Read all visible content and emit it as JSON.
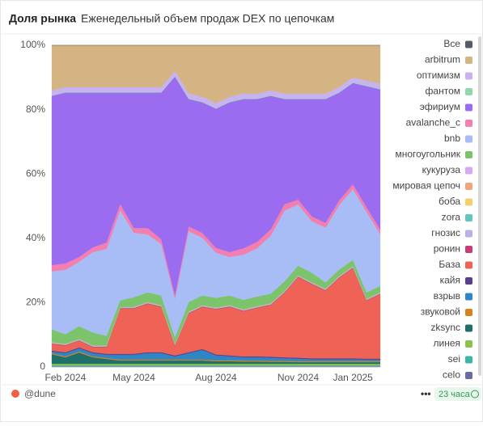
{
  "chart_data": {
    "type": "area",
    "stacked": true,
    "title": "Доля рынка",
    "subtitle": "Еженедельный объем продаж DEX по цепочкам",
    "footer_source": "@dune",
    "footer_time": "23 часа",
    "categories": [
      null,
      "Feb 2024",
      null,
      null,
      null,
      null,
      "May 2024",
      null,
      null,
      null,
      null,
      null,
      "Aug 2024",
      null,
      null,
      null,
      null,
      null,
      "Nov 2024",
      null,
      null,
      null,
      "Jan 2025",
      null,
      null
    ],
    "ylim": [
      0,
      100
    ],
    "yticks": [
      0,
      {
        "value": 20,
        "label": "20%"
      },
      {
        "value": 40,
        "label": "40%"
      },
      {
        "value": 60,
        "label": "60%"
      },
      {
        "value": 80,
        "label": "80%"
      },
      {
        "value": 100,
        "label": "100%"
      }
    ],
    "grid": true,
    "legend": "right",
    "series": [
      {
        "name": "Все",
        "color": "#555b66",
        "values": [
          0,
          0,
          0,
          0,
          0,
          0,
          0,
          0,
          0,
          0,
          0,
          0,
          0,
          0,
          0,
          0,
          0,
          0,
          0,
          0,
          0,
          0,
          0,
          0,
          0
        ]
      },
      {
        "name": "arbitrum",
        "color": "#d4b483",
        "values": [
          14,
          13,
          13,
          13,
          13,
          13,
          13,
          13,
          13,
          8,
          15,
          16,
          18,
          16,
          15,
          15,
          14,
          15,
          15,
          15,
          15,
          13,
          10,
          11,
          12
        ]
      },
      {
        "name": "оптимизм",
        "color": "#c9b2f2",
        "values": [
          1.5,
          1.5,
          1.5,
          1.5,
          1.5,
          1.5,
          1.5,
          1.5,
          1.5,
          1.5,
          1.5,
          1.5,
          1.5,
          1.5,
          1.5,
          1.5,
          1.5,
          1.5,
          1.5,
          1.5,
          1.5,
          1.5,
          1.5,
          1.5,
          1.5
        ]
      },
      {
        "name": "фантом",
        "color": "#8fd9a8",
        "values": [
          0.2,
          0.2,
          0.2,
          0.2,
          0.2,
          0.2,
          0.2,
          0.2,
          0.2,
          0.2,
          0.2,
          0.2,
          0.2,
          0.2,
          0.2,
          0.2,
          0.2,
          0.2,
          0.2,
          0.2,
          0.2,
          0.2,
          0.2,
          0.2,
          0.2
        ]
      },
      {
        "name": "эфириум",
        "color": "#9b6cf0",
        "values": [
          52.6,
          53.1,
          51.1,
          48.1,
          46.6,
          34.6,
          42.1,
          42.1,
          45.6,
          68.1,
          39.6,
          40.6,
          43.3,
          46.6,
          46.4,
          44.4,
          41.5,
          32.7,
          31.3,
          36.5,
          38.5,
          33.5,
          31.5,
          37.6,
          43.6
        ]
      },
      {
        "name": "avalanche_c",
        "color": "#f27fb0",
        "values": [
          2,
          2,
          1.5,
          1.5,
          2,
          2,
          1.5,
          2,
          1.5,
          1,
          1.5,
          1.5,
          1.5,
          1.5,
          2,
          2,
          2,
          2,
          1.5,
          1.5,
          1.5,
          1.5,
          1.5,
          1.5,
          1.5
        ]
      },
      {
        "name": "bnb",
        "color": "#a8bdf5",
        "values": [
          18,
          20,
          20,
          25,
          27,
          28,
          20,
          18,
          16,
          12,
          22,
          18,
          14,
          12,
          14,
          15,
          18,
          22,
          19,
          16,
          17,
          20,
          22,
          25,
          16
        ]
      },
      {
        "name": "многоугольник",
        "color": "#7cc46b",
        "values": [
          4,
          3,
          4,
          4,
          3,
          2,
          3,
          3,
          3,
          2,
          3,
          3,
          3,
          3,
          3,
          3,
          3,
          3,
          3,
          3,
          2,
          2,
          2,
          2,
          2
        ]
      },
      {
        "name": "кукуруза",
        "color": "#d8a8f0",
        "values": [
          0.05,
          0.05,
          0.05,
          0.05,
          0.05,
          0.05,
          0.05,
          0.05,
          0.05,
          0.05,
          0.05,
          0.05,
          0.05,
          0.05,
          0.05,
          0.05,
          0.05,
          0.05,
          0.05,
          0.05,
          0.05,
          0.05,
          0.05,
          0.05,
          0.05
        ]
      },
      {
        "name": "мировая цепоч",
        "color": "#f2a57a",
        "values": [
          0.1,
          0.1,
          0.1,
          0.1,
          0.1,
          0.1,
          0.1,
          0.1,
          0.1,
          0.1,
          0.1,
          0.1,
          0.1,
          0.1,
          0.1,
          0.1,
          0.1,
          0.1,
          0.1,
          0.1,
          0.1,
          0.1,
          0.1,
          0.1,
          0.1
        ]
      },
      {
        "name": "боба",
        "color": "#f2d06b",
        "values": [
          0.05,
          0.05,
          0.05,
          0.05,
          0.05,
          0.05,
          0.05,
          0.05,
          0.05,
          0.05,
          0.05,
          0.05,
          0.05,
          0.05,
          0.05,
          0.05,
          0.05,
          0.05,
          0.05,
          0.05,
          0.05,
          0.05,
          0.05,
          0.05,
          0.05
        ]
      },
      {
        "name": "zora",
        "color": "#5ec8c0",
        "values": [
          0.1,
          0.1,
          0.1,
          0.1,
          0.1,
          0.1,
          0.1,
          0.1,
          0.1,
          0.1,
          0.1,
          0.1,
          0.1,
          0.1,
          0.1,
          0.1,
          0.1,
          0.1,
          0.1,
          0.1,
          0.1,
          0.1,
          0.1,
          0.1,
          0.1
        ]
      },
      {
        "name": "гнозис",
        "color": "#b8b0e8",
        "values": [
          0.1,
          0.1,
          0.1,
          0.1,
          0.1,
          0.1,
          0.1,
          0.1,
          0.1,
          0.1,
          0.1,
          0.1,
          0.1,
          0.1,
          0.1,
          0.1,
          0.1,
          0.1,
          0.1,
          0.1,
          0.1,
          0.1,
          0.1,
          0.1,
          0.1
        ]
      },
      {
        "name": "ронин",
        "color": "#c83c7a",
        "values": [
          0.2,
          0.2,
          0.2,
          0.2,
          0.2,
          0.2,
          0.2,
          0.2,
          0.2,
          0.2,
          0.2,
          0.2,
          0.2,
          0.2,
          0.2,
          0.2,
          0.2,
          0.2,
          0.2,
          0.2,
          0.2,
          0.2,
          0.2,
          0.2,
          0.2
        ]
      },
      {
        "name": "База",
        "color": "#ef6357",
        "values": [
          2,
          2,
          2,
          1.5,
          2,
          14,
          14,
          15,
          14,
          3,
          12,
          13,
          14,
          15,
          14,
          15,
          16,
          20,
          25,
          23,
          21,
          25,
          28,
          18,
          20
        ]
      },
      {
        "name": "кайя",
        "color": "#5a3f8a",
        "values": [
          0.3,
          0.3,
          0.3,
          0.3,
          0.3,
          0.3,
          0.3,
          0.3,
          0.3,
          0.3,
          0.3,
          0.3,
          0.3,
          0.3,
          0.3,
          0.3,
          0.3,
          0.3,
          0.3,
          0.3,
          0.3,
          0.3,
          0.3,
          0.3,
          0.3
        ]
      },
      {
        "name": "взрыв",
        "color": "#2f86c4",
        "values": [
          0.5,
          1,
          1,
          1,
          1,
          1.5,
          1.5,
          2,
          2,
          1,
          2,
          3,
          1.5,
          1.2,
          1,
          1,
          1,
          0.8,
          0.8,
          0.6,
          0.6,
          0.6,
          0.6,
          0.5,
          0.5
        ]
      },
      {
        "name": "звуковой",
        "color": "#d9821c",
        "values": [
          0.3,
          0.3,
          0.3,
          0.3,
          0.3,
          0.3,
          0.3,
          0.3,
          0.3,
          0.3,
          0.3,
          0.3,
          0.3,
          0.3,
          0.3,
          0.3,
          0.3,
          0.3,
          0.3,
          0.3,
          0.3,
          0.3,
          0.3,
          0.3,
          0.3
        ]
      },
      {
        "name": "zksync",
        "color": "#1f6f6a",
        "values": [
          3,
          2,
          3.5,
          2,
          1.5,
          1,
          1,
          1,
          1,
          1,
          1,
          1,
          0.8,
          0.8,
          0.7,
          0.7,
          0.6,
          0.6,
          0.5,
          0.5,
          0.5,
          0.5,
          0.5,
          0.5,
          0.5
        ]
      },
      {
        "name": "линея",
        "color": "#8bc34a",
        "values": [
          0.5,
          0.5,
          0.5,
          0.5,
          0.5,
          0.5,
          0.5,
          0.5,
          0.5,
          0.5,
          0.5,
          0.5,
          0.5,
          0.5,
          0.5,
          0.5,
          0.5,
          0.5,
          0.5,
          0.5,
          0.5,
          0.5,
          0.5,
          0.5,
          0.5
        ]
      },
      {
        "name": "sei",
        "color": "#3ab5a8",
        "values": [
          0.2,
          0.2,
          0.2,
          0.2,
          0.2,
          0.2,
          0.2,
          0.2,
          0.2,
          0.2,
          0.2,
          0.2,
          0.2,
          0.2,
          0.2,
          0.2,
          0.2,
          0.2,
          0.2,
          0.2,
          0.2,
          0.2,
          0.2,
          0.2,
          0.2
        ]
      },
      {
        "name": "celo",
        "color": "#6b6aa8",
        "values": [
          0.3,
          0.3,
          0.3,
          0.3,
          0.3,
          0.3,
          0.3,
          0.3,
          0.3,
          0.3,
          0.3,
          0.3,
          0.3,
          0.3,
          0.3,
          0.3,
          0.3,
          0.3,
          0.3,
          0.3,
          0.3,
          0.3,
          0.3,
          0.3,
          0.3
        ]
      }
    ]
  }
}
